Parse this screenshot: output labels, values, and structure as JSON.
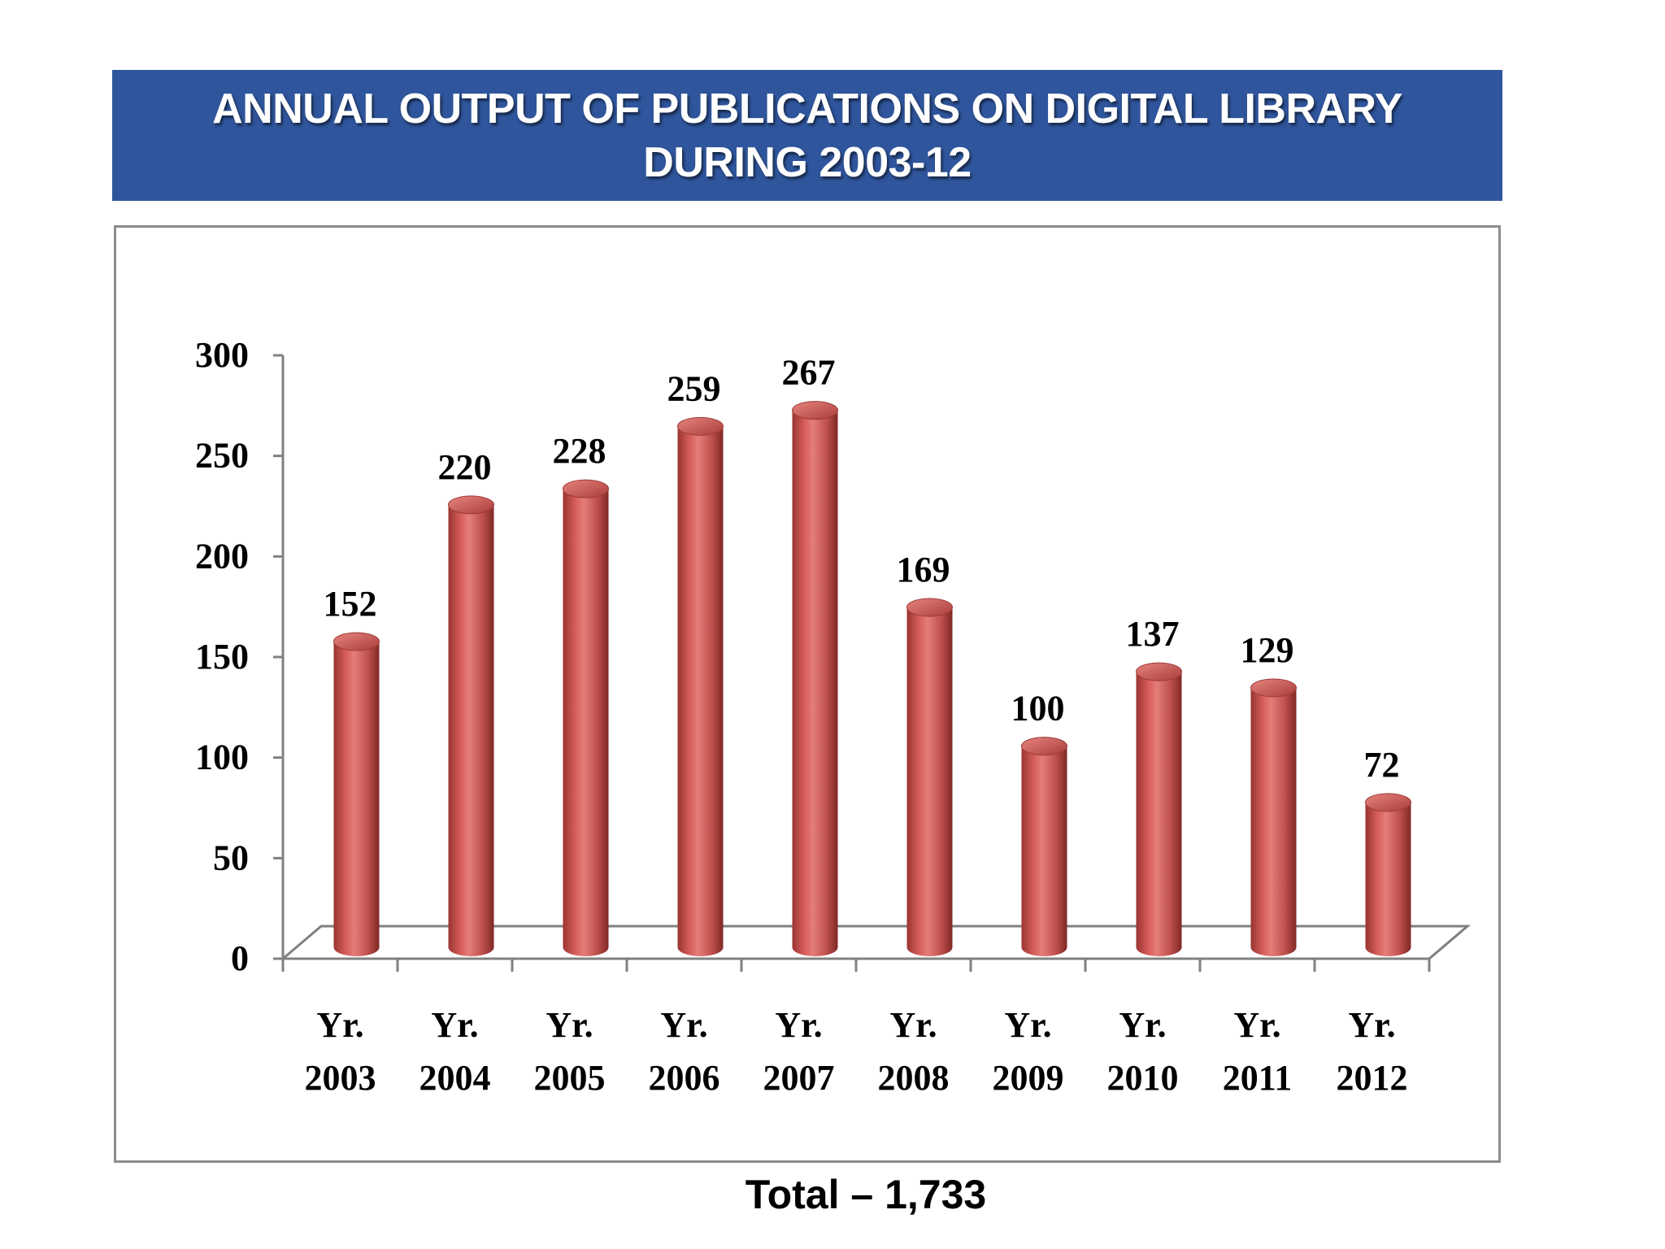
{
  "title": "ANNUAL OUTPUT OF PUBLICATIONS ON DIGITAL LIBRARY DURING 2003-12",
  "total_label": "Total – 1,733",
  "colors": {
    "banner": "#2f559c",
    "bar": "#c0504d",
    "bar_light": "#e07a76",
    "bar_dark": "#8b2c29",
    "frame": "#8c8c8c"
  },
  "chart_data": {
    "type": "bar",
    "style": "3d-cylinder",
    "title": "ANNUAL OUTPUT OF PUBLICATIONS ON DIGITAL LIBRARY DURING 2003-12",
    "categories": [
      [
        "Yr.",
        "2003"
      ],
      [
        "Yr.",
        "2004"
      ],
      [
        "Yr.",
        "2005"
      ],
      [
        "Yr.",
        "2006"
      ],
      [
        "Yr.",
        "2007"
      ],
      [
        "Yr.",
        "2008"
      ],
      [
        "Yr.",
        "2009"
      ],
      [
        "Yr.",
        "2010"
      ],
      [
        "Yr.",
        "2011"
      ],
      [
        "Yr.",
        "2012"
      ]
    ],
    "values": [
      152,
      220,
      228,
      259,
      267,
      169,
      100,
      137,
      129,
      72
    ],
    "data_labels": [
      "152",
      "220",
      "228",
      "259",
      "267",
      "169",
      "100",
      "137",
      "129",
      "72"
    ],
    "yticks": [
      "0",
      "50",
      "100",
      "150",
      "200",
      "250",
      "300"
    ],
    "ylim": [
      0,
      300
    ],
    "grid": false,
    "legend": "none",
    "xlabel": "",
    "ylabel": ""
  }
}
